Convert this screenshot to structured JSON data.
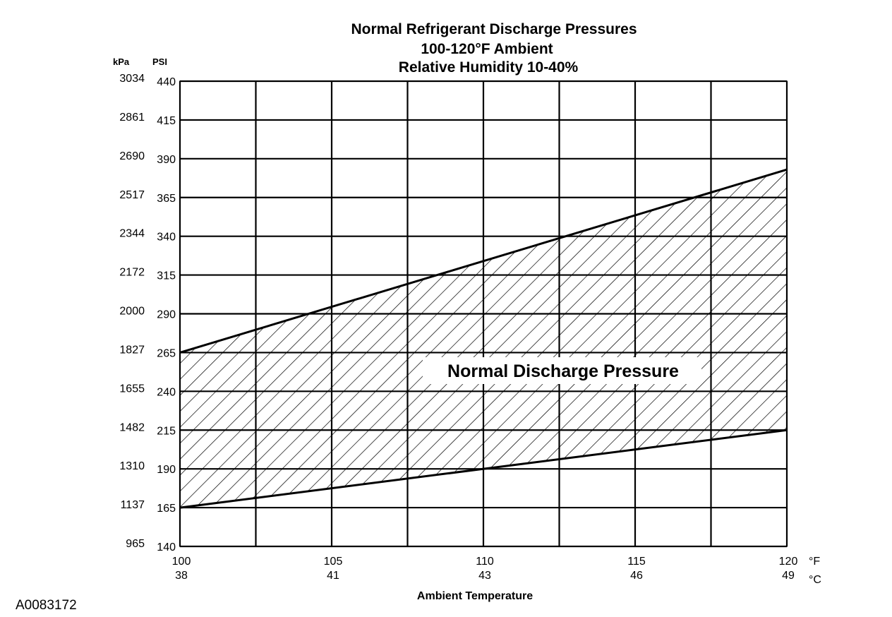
{
  "chart_data": {
    "type": "area",
    "title_lines": [
      "Normal  Refrigerant  Discharge  Pressures",
      "100-120°F Ambient",
      "Relative Humidity 10-40%"
    ],
    "xlabel": "Ambient Temperature",
    "x_unit_primary": "°F",
    "x_unit_secondary": "°C",
    "y_unit_primary": "PSI",
    "y_unit_secondary": "kPa",
    "x_ticks": [
      {
        "f": 100,
        "c": "38"
      },
      {
        "f": 105,
        "c": "41"
      },
      {
        "f": 110,
        "c": "43"
      },
      {
        "f": 115,
        "c": "46"
      },
      {
        "f": 120,
        "c": "49"
      }
    ],
    "x_gridlines": [
      100,
      102.5,
      105,
      107.5,
      110,
      112.5,
      115,
      117.5,
      120
    ],
    "xlim": [
      100,
      120
    ],
    "ylim": [
      140,
      440
    ],
    "y_ticks": [
      {
        "psi": 440,
        "kpa": "3034"
      },
      {
        "psi": 415,
        "kpa": "2861"
      },
      {
        "psi": 390,
        "kpa": "2690"
      },
      {
        "psi": 365,
        "kpa": "2517"
      },
      {
        "psi": 340,
        "kpa": "2344"
      },
      {
        "psi": 315,
        "kpa": "2172"
      },
      {
        "psi": 290,
        "kpa": "2000"
      },
      {
        "psi": 265,
        "kpa": "1827"
      },
      {
        "psi": 240,
        "kpa": "1655"
      },
      {
        "psi": 215,
        "kpa": "1482"
      },
      {
        "psi": 190,
        "kpa": "1310"
      },
      {
        "psi": 165,
        "kpa": "1137"
      },
      {
        "psi": 140,
        "kpa": "965"
      }
    ],
    "series": [
      {
        "name": "Normal Discharge Pressure",
        "role": "upper",
        "x": [
          100,
          120
        ],
        "y": [
          265,
          383
        ]
      },
      {
        "name": "Normal Discharge Pressure",
        "role": "lower",
        "x": [
          100,
          120
        ],
        "y": [
          165,
          215
        ]
      }
    ],
    "band_label": "Normal Discharge Pressure",
    "grid": true
  },
  "figure_id": "A0083172"
}
